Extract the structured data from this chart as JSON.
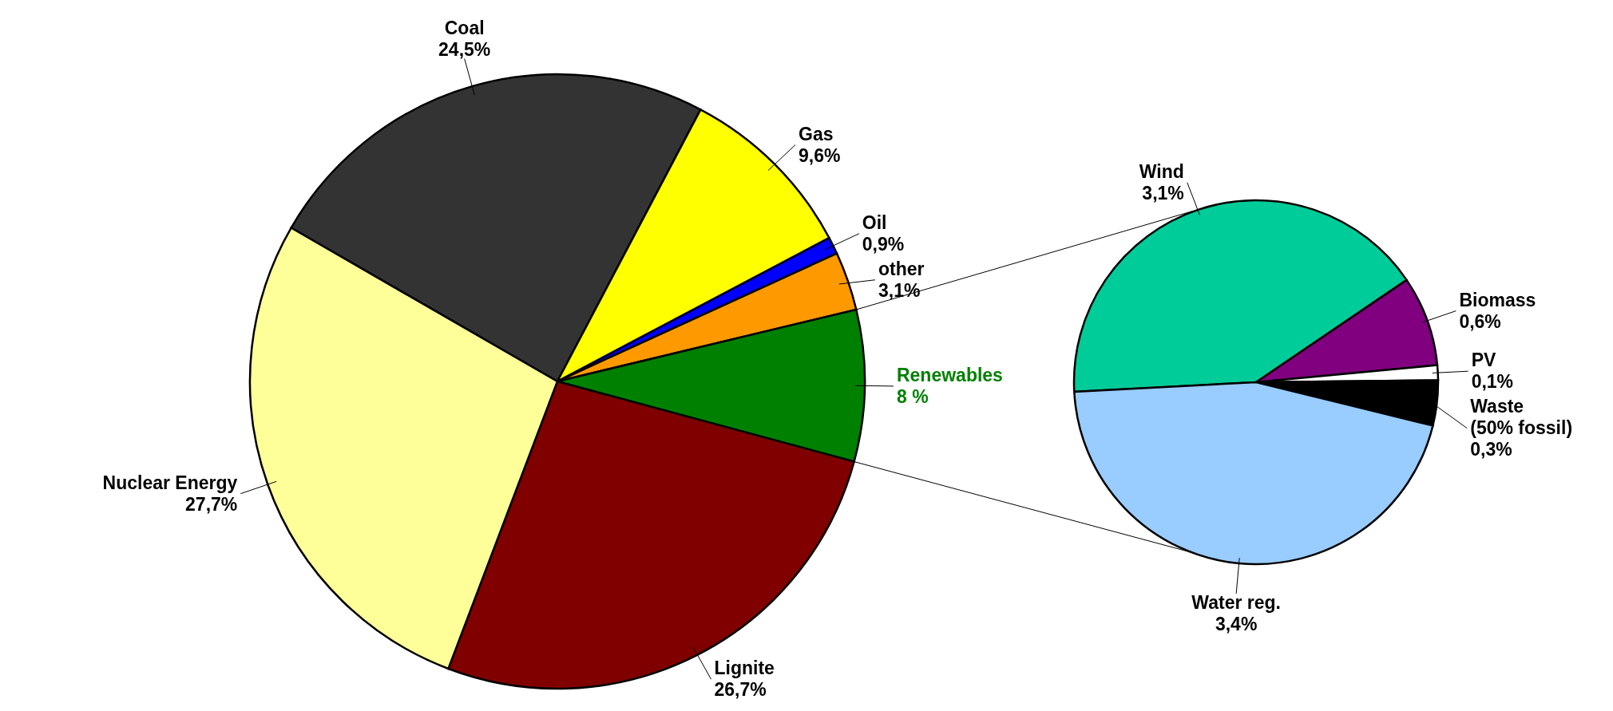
{
  "chart_data": [
    {
      "type": "pie",
      "categories": [
        "Coal",
        "Gas",
        "Oil",
        "other",
        "Renewables",
        "Lignite",
        "Nuclear Energy"
      ],
      "values": [
        24.5,
        9.6,
        0.9,
        3.1,
        8,
        26.7,
        27.7
      ],
      "value_labels": [
        "24,5%",
        "9,6%",
        "0,9%",
        "3,1%",
        "8 %",
        "26,7%",
        "27,7%"
      ],
      "colors": [
        "#333333",
        "#ffff00",
        "#0000ff",
        "#ff9900",
        "#008000",
        "#800000",
        "#ffff99"
      ]
    },
    {
      "type": "pie",
      "categories": [
        "Wind",
        "Biomass",
        "PV",
        "Waste\n(50% fossil)",
        "Water reg."
      ],
      "values": [
        3.1,
        0.6,
        0.1,
        0.3,
        3.4
      ],
      "value_labels": [
        "3,1%",
        "0,6%",
        "0,1%",
        "0,3%",
        "3,4%"
      ],
      "colors": [
        "#00cc99",
        "#800080",
        "#ffffff",
        "#000000",
        "#99ccff"
      ]
    }
  ]
}
